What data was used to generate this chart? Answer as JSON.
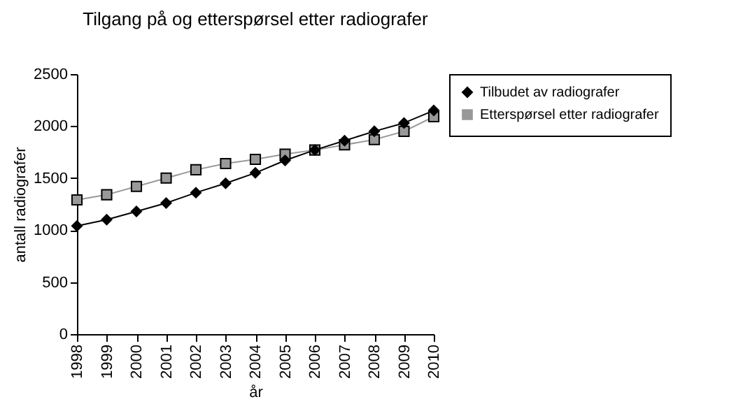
{
  "chart_data": {
    "type": "line",
    "title": "Tilgang  på og etterspørsel  etter radiografer",
    "xlabel": "år",
    "ylabel": "antall radiografer",
    "x": [
      1998,
      1999,
      2000,
      2001,
      2002,
      2003,
      2004,
      2005,
      2006,
      2007,
      2008,
      2009,
      2010
    ],
    "series": [
      {
        "name": "Tilbudet av radiografer",
        "color": "#000000",
        "marker": "diamond",
        "values": [
          1040,
          1100,
          1180,
          1260,
          1360,
          1450,
          1550,
          1670,
          1770,
          1860,
          1950,
          2030,
          2150
        ]
      },
      {
        "name": "Etterspørsel etter radiografer",
        "color": "#999999",
        "marker": "square",
        "values": [
          1290,
          1340,
          1420,
          1500,
          1580,
          1640,
          1680,
          1730,
          1770,
          1820,
          1870,
          1950,
          2090
        ]
      }
    ],
    "xlim": [
      1998,
      2010
    ],
    "xticks": [
      1998,
      1999,
      2000,
      2001,
      2002,
      2003,
      2004,
      2005,
      2006,
      2007,
      2008,
      2009,
      2010
    ],
    "ylim": [
      0,
      2500
    ],
    "yticks": [
      0,
      500,
      1000,
      1500,
      2000,
      2500
    ],
    "legend": "right",
    "grid": false
  }
}
